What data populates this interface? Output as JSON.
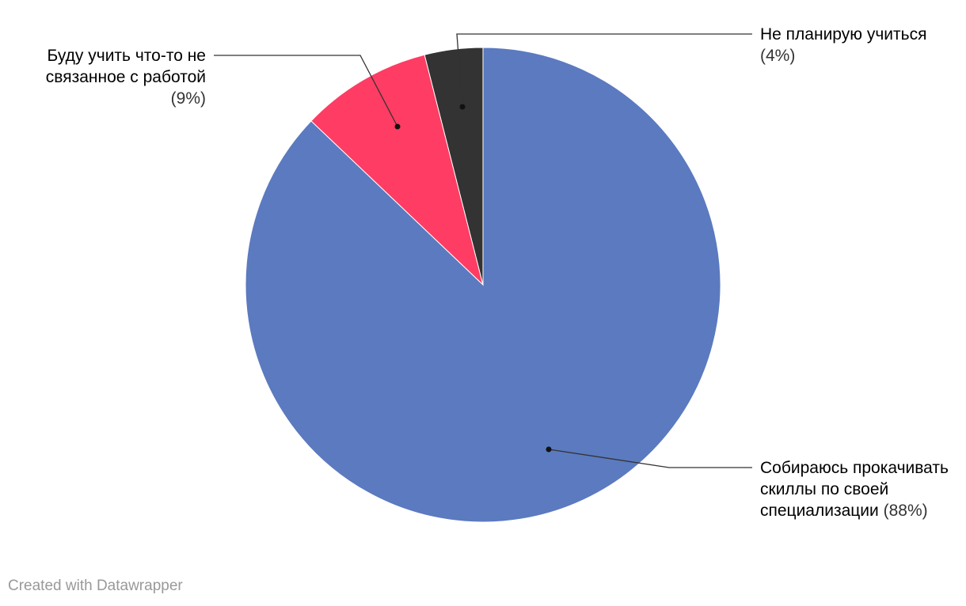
{
  "chart_data": {
    "type": "pie",
    "categories": [
      "Собираюсь прокачивать скиллы по своей специализации",
      "Буду учить что-то не связанное с работой",
      "Не планирую учиться"
    ],
    "values": [
      88,
      9,
      4
    ],
    "value_labels": [
      "(88%)",
      "(9%)",
      "(4%)"
    ],
    "colors": [
      "#5b7abf",
      "#ff3c63",
      "#333333"
    ],
    "footer": "Created with Datawrapper"
  }
}
